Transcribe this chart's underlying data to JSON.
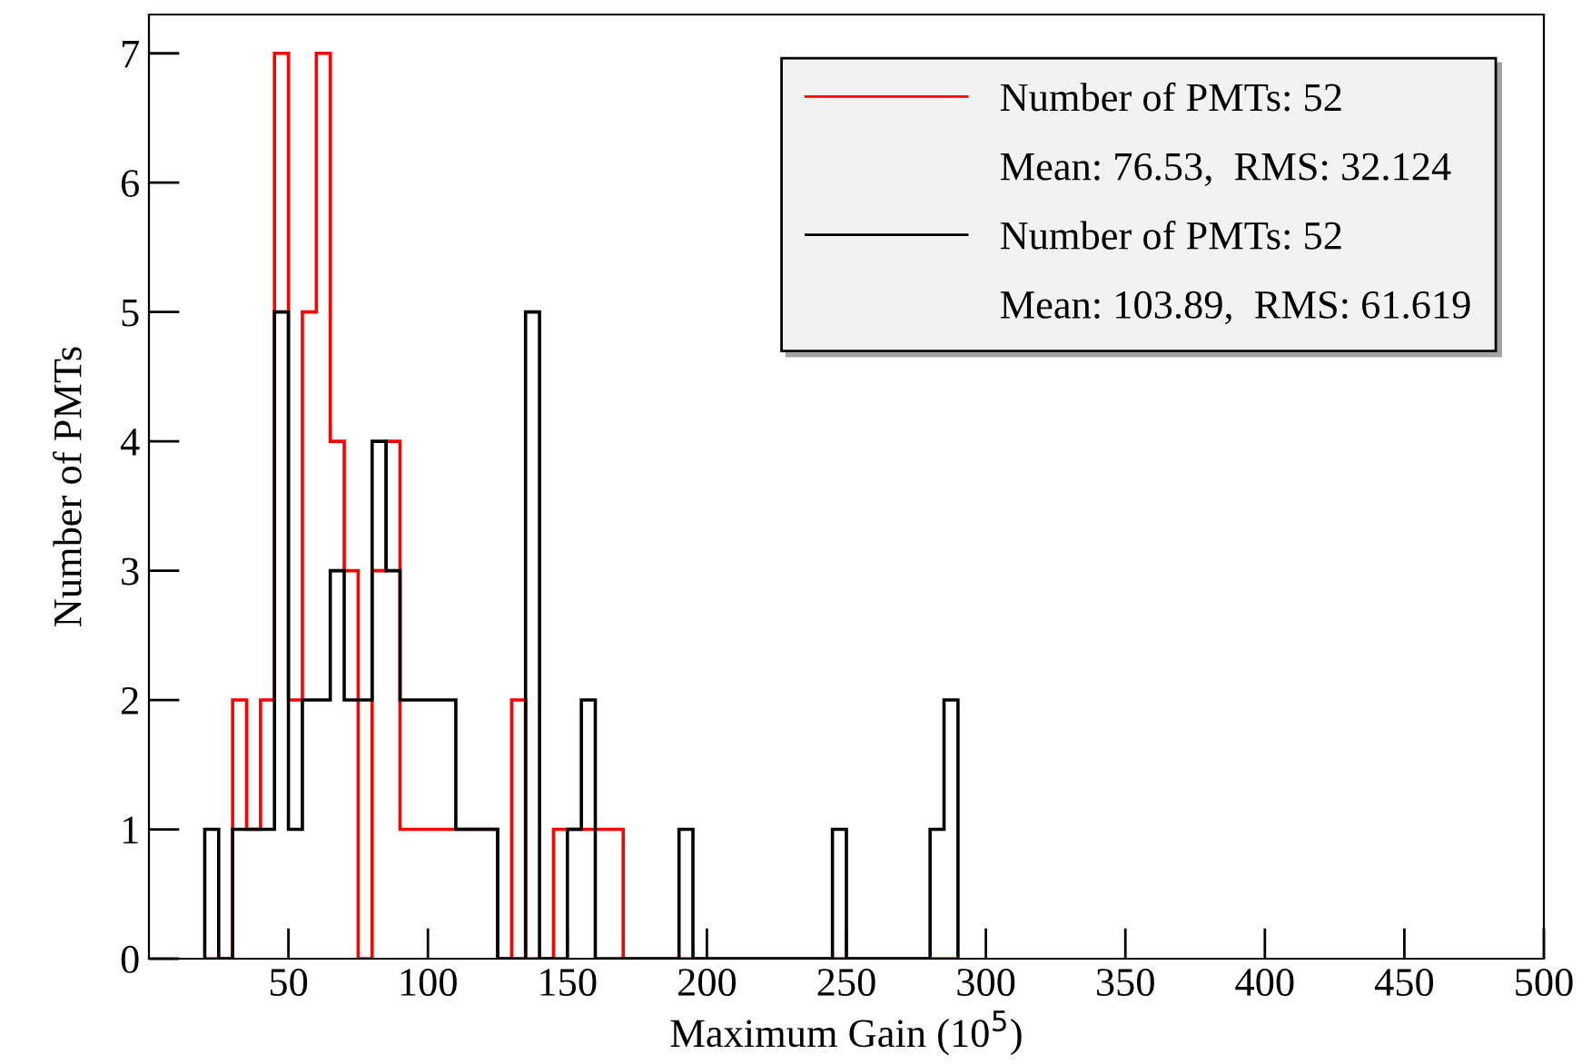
{
  "chart_data": {
    "type": "histogram",
    "xlabel": "Maximum Gain (10$^{5}$)",
    "ylabel": "Number of PMTs",
    "bins": [
      20,
      25,
      30,
      35,
      40,
      45,
      50,
      55,
      60,
      65,
      70,
      75,
      80,
      85,
      90,
      95,
      100,
      105,
      110,
      115,
      120,
      125,
      130,
      135,
      140,
      145,
      150,
      155,
      160,
      165,
      170,
      175,
      180,
      185,
      190,
      195,
      200,
      205,
      210,
      215,
      220,
      225,
      230,
      235,
      240,
      245,
      250,
      255,
      260,
      265,
      270,
      275,
      280,
      285,
      290
    ],
    "series": [
      {
        "name": "Number of PMTs: 52",
        "color": "#ff0000",
        "values": [
          0,
          0,
          2,
          1,
          2,
          7,
          2,
          5,
          7,
          4,
          3,
          0,
          3,
          4,
          1,
          1,
          1,
          1,
          1,
          1,
          1,
          0,
          2,
          0,
          0,
          1,
          1,
          1,
          1,
          1,
          0,
          0,
          0,
          0,
          0,
          0,
          0,
          0,
          0,
          0,
          0,
          0,
          0,
          0,
          0,
          0,
          0,
          0,
          0,
          0,
          0,
          0,
          0,
          0
        ]
      },
      {
        "name": "Number of PMTs: 52",
        "color": "#000000",
        "values": [
          1,
          0,
          1,
          1,
          1,
          5,
          1,
          2,
          2,
          3,
          2,
          2,
          4,
          3,
          2,
          2,
          2,
          2,
          1,
          1,
          1,
          0,
          0,
          5,
          0,
          0,
          1,
          2,
          0,
          0,
          0,
          0,
          0,
          0,
          1,
          0,
          0,
          0,
          0,
          0,
          0,
          0,
          0,
          0,
          0,
          1,
          0,
          0,
          0,
          0,
          0,
          0,
          1,
          2
        ]
      }
    ],
    "annotations": [
      "Mean: 76.53,  RMS: 32.124",
      "Mean: 103.89,  RMS: 61.619"
    ],
    "xlim": [
      0,
      500
    ],
    "xticks": [
      50,
      100,
      150,
      200,
      250,
      300,
      350,
      400,
      450,
      500
    ],
    "ylim": [
      0,
      7.3
    ],
    "yticks": [
      0,
      1,
      2,
      3,
      4,
      5,
      6,
      7
    ],
    "legend": "top right",
    "grid": false
  }
}
